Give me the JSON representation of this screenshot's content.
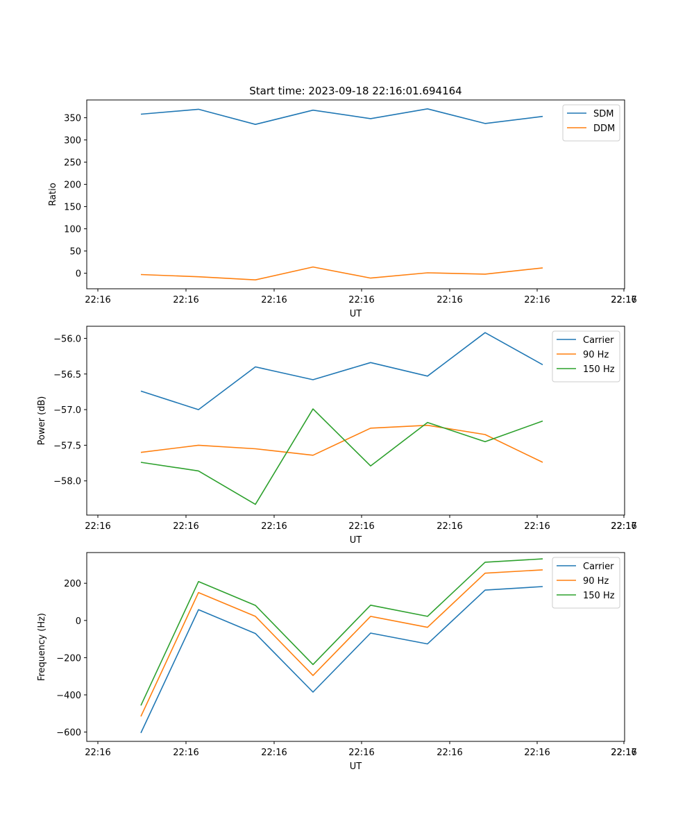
{
  "figure": {
    "title": "Start time: 2023-09-18 22:16:01.694164"
  },
  "chart_data": [
    {
      "type": "line",
      "title": "Start time: 2023-09-18 22:16:01.694164",
      "xlabel": "UT",
      "ylabel": "Ratio",
      "x_tick_labels": [
        "22:16",
        "22:16",
        "22:16",
        "22:16",
        "22:16",
        "22:16",
        "22:16",
        "22:17"
      ],
      "x": [
        1,
        2,
        3,
        4,
        5,
        6,
        7,
        8
      ],
      "xlim": [
        -0.2,
        9.2
      ],
      "ylim": [
        -35,
        390
      ],
      "yticks": [
        0,
        50,
        100,
        150,
        200,
        250,
        300,
        350
      ],
      "legend_loc": "upper right",
      "series": [
        {
          "name": "SDM",
          "color": "#1f77b4",
          "values": [
            358,
            369,
            335,
            367,
            348,
            370,
            337,
            353
          ]
        },
        {
          "name": "DDM",
          "color": "#ff7f0e",
          "values": [
            -3,
            -8,
            -15,
            14,
            -11,
            1,
            -2,
            12
          ]
        }
      ]
    },
    {
      "type": "line",
      "title": "",
      "xlabel": "UT",
      "ylabel": "Power (dB)",
      "x_tick_labels": [
        "22:16",
        "22:16",
        "22:16",
        "22:16",
        "22:16",
        "22:16",
        "22:16",
        "22:17"
      ],
      "x": [
        1,
        2,
        3,
        4,
        5,
        6,
        7,
        8
      ],
      "xlim": [
        -0.2,
        9.2
      ],
      "ylim": [
        -58.48,
        -55.83
      ],
      "yticks": [
        -58.0,
        -57.5,
        -57.0,
        -56.5,
        -56.0
      ],
      "legend_loc": "upper right",
      "series": [
        {
          "name": "Carrier",
          "color": "#1f77b4",
          "values": [
            -56.74,
            -57.0,
            -56.4,
            -56.58,
            -56.34,
            -56.53,
            -55.92,
            -56.37
          ]
        },
        {
          "name": "90 Hz",
          "color": "#ff7f0e",
          "values": [
            -57.6,
            -57.5,
            -57.55,
            -57.64,
            -57.26,
            -57.22,
            -57.35,
            -57.74
          ]
        },
        {
          "name": "150 Hz",
          "color": "#2ca02c",
          "values": [
            -57.74,
            -57.86,
            -58.33,
            -56.99,
            -57.79,
            -57.18,
            -57.45,
            -57.16
          ]
        }
      ]
    },
    {
      "type": "line",
      "title": "",
      "xlabel": "UT",
      "ylabel": "Frequency (Hz)",
      "x_tick_labels": [
        "22:16",
        "22:16",
        "22:16",
        "22:16",
        "22:16",
        "22:16",
        "22:16",
        "22:17"
      ],
      "x": [
        1,
        2,
        3,
        4,
        5,
        6,
        7,
        8
      ],
      "xlim": [
        -0.2,
        9.2
      ],
      "ylim": [
        -650,
        365
      ],
      "yticks": [
        -600,
        -400,
        -200,
        0,
        200
      ],
      "legend_loc": "upper right",
      "series": [
        {
          "name": "Carrier",
          "color": "#1f77b4",
          "values": [
            -605,
            58,
            -70,
            -385,
            -68,
            -126,
            163,
            182
          ]
        },
        {
          "name": "90 Hz",
          "color": "#ff7f0e",
          "values": [
            -516,
            150,
            22,
            -296,
            22,
            -37,
            254,
            272
          ]
        },
        {
          "name": "150 Hz",
          "color": "#2ca02c",
          "values": [
            -457,
            209,
            81,
            -237,
            82,
            22,
            313,
            331
          ]
        }
      ]
    }
  ]
}
